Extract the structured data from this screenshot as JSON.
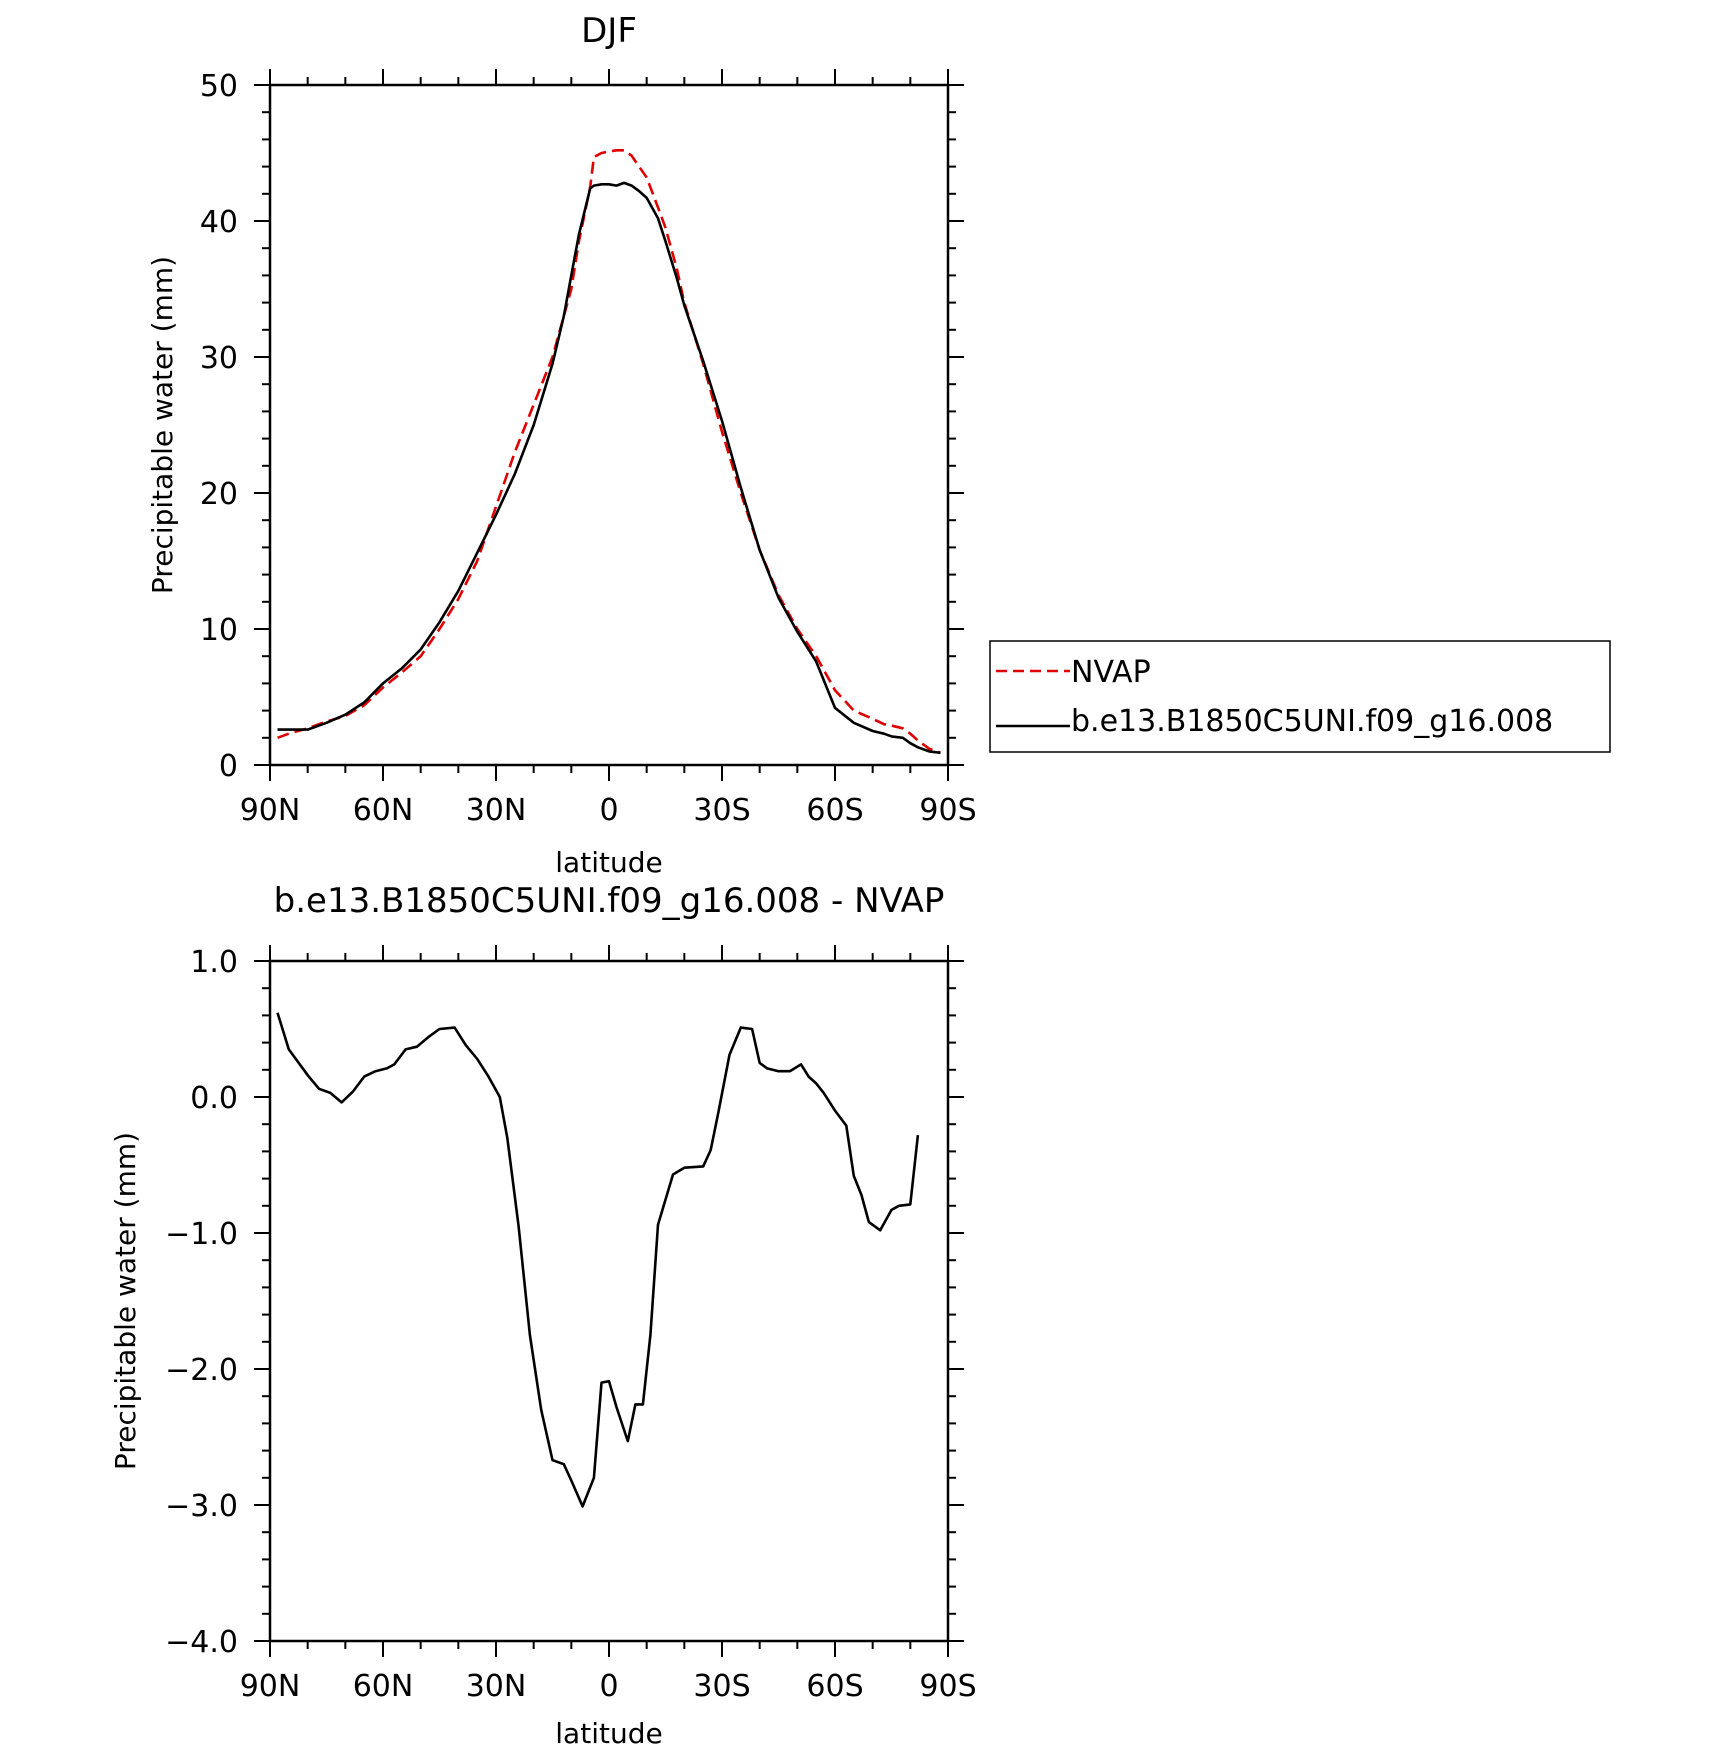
{
  "chart_data": [
    {
      "type": "line",
      "title": "DJF",
      "xlabel": "latitude",
      "ylabel": "Precipitable water (mm)",
      "ylim": [
        0,
        50
      ],
      "yticks": [
        "0",
        "10",
        "20",
        "30",
        "40",
        "50"
      ],
      "xticks": [
        "90N",
        "60N",
        "30N",
        "0",
        "30S",
        "60S",
        "90S"
      ],
      "xrange_note": "x axis runs from 90N (left) to 90S (right); values below are signed latitude, north positive",
      "legend": {
        "position": "right",
        "entries": [
          "NVAP",
          "b.e13.B1850C5UNI.f09_g16.008"
        ]
      },
      "series": [
        {
          "name": "NVAP",
          "color": "#e00000",
          "style": "dashed",
          "x": [
            88,
            85,
            80,
            75,
            70,
            65,
            60,
            55,
            50,
            45,
            40,
            35,
            30,
            25,
            20,
            15,
            10,
            8,
            5,
            4,
            2,
            0,
            -2,
            -4,
            -6,
            -8,
            -10,
            -13,
            -15,
            -18,
            -20,
            -25,
            -30,
            -35,
            -40,
            -45,
            -50,
            -55,
            -60,
            -65,
            -70,
            -73,
            -75,
            -78,
            -80,
            -82,
            -85,
            -88
          ],
          "values": [
            2.0,
            2.3,
            2.7,
            3.2,
            3.6,
            4.4,
            5.7,
            6.8,
            8.0,
            10.0,
            12.2,
            15.0,
            19.0,
            23.0,
            26.5,
            30.0,
            35.0,
            38.5,
            42.5,
            44.7,
            45.0,
            45.1,
            45.2,
            45.2,
            44.8,
            44.0,
            43.2,
            41.0,
            39.5,
            36.5,
            34.0,
            29.5,
            24.5,
            20.0,
            15.8,
            12.5,
            10.0,
            8.0,
            5.5,
            4.0,
            3.4,
            3.0,
            2.9,
            2.7,
            2.3,
            1.8,
            1.2,
            0.9
          ]
        },
        {
          "name": "b.e13.B1850C5UNI.f09_g16.008",
          "color": "#000000",
          "style": "solid",
          "x": [
            88,
            85,
            80,
            75,
            70,
            65,
            60,
            55,
            50,
            45,
            40,
            35,
            30,
            25,
            20,
            15,
            12,
            10,
            8,
            5,
            4,
            2,
            0,
            -2,
            -4,
            -6,
            -8,
            -10,
            -13,
            -15,
            -18,
            -20,
            -25,
            -30,
            -35,
            -40,
            -45,
            -50,
            -55,
            -60,
            -65,
            -70,
            -73,
            -75,
            -78,
            -80,
            -82,
            -85,
            -88
          ],
          "values": [
            2.6,
            2.6,
            2.6,
            3.1,
            3.7,
            4.6,
            6.0,
            7.1,
            8.5,
            10.5,
            12.8,
            15.6,
            18.4,
            21.4,
            25.0,
            29.5,
            33.0,
            36.0,
            39.0,
            42.4,
            42.6,
            42.7,
            42.7,
            42.6,
            42.8,
            42.6,
            42.2,
            41.7,
            40.2,
            38.5,
            35.8,
            33.8,
            29.7,
            25.3,
            20.4,
            15.8,
            12.3,
            9.8,
            7.6,
            4.2,
            3.1,
            2.5,
            2.3,
            2.1,
            2.0,
            1.6,
            1.3,
            1.0,
            0.9
          ]
        }
      ]
    },
    {
      "type": "line",
      "title": "b.e13.B1850C5UNI.f09_g16.008 - NVAP",
      "xlabel": "latitude",
      "ylabel": "Precipitable water (mm)",
      "ylim": [
        -4.0,
        1.0
      ],
      "yticks": [
        "-4.0",
        "-3.0",
        "-2.0",
        "-1.0",
        "0.0",
        "1.0"
      ],
      "xticks": [
        "90N",
        "60N",
        "30N",
        "0",
        "30S",
        "60S",
        "90S"
      ],
      "series": [
        {
          "color": "#000000",
          "style": "solid",
          "x": [
            88,
            85,
            80,
            77,
            74,
            71,
            68,
            65,
            62,
            59,
            57,
            54,
            51,
            48,
            45,
            41,
            38,
            35,
            32,
            29,
            27,
            24,
            21,
            18,
            15,
            12,
            10,
            7,
            4,
            2,
            0,
            -2,
            -5,
            -7,
            -9,
            -11,
            -13,
            -17,
            -20,
            -25,
            -27,
            -29,
            -32,
            -35,
            -38,
            -40,
            -42,
            -45,
            -48,
            -51,
            -53,
            -55,
            -57,
            -60,
            -63,
            -65,
            -67,
            -69,
            -72,
            -75,
            -77,
            -80,
            -82,
            -85,
            -87
          ],
          "values": [
            0.62,
            0.35,
            0.16,
            0.06,
            0.03,
            -0.04,
            0.04,
            0.15,
            0.19,
            0.21,
            0.24,
            0.35,
            0.37,
            0.44,
            0.5,
            0.51,
            0.38,
            0.28,
            0.15,
            0.0,
            -0.3,
            -0.95,
            -1.75,
            -2.3,
            -2.67,
            -2.7,
            -2.82,
            -3.01,
            -2.8,
            -2.1,
            -2.09,
            -2.28,
            -2.53,
            -2.26,
            -2.26,
            -1.75,
            -0.94,
            -0.57,
            -0.52,
            -0.51,
            -0.39,
            -0.12,
            0.31,
            0.51,
            0.5,
            0.25,
            0.21,
            0.19,
            0.19,
            0.24,
            0.15,
            0.1,
            0.03,
            -0.1,
            -0.21,
            -0.58,
            -0.72,
            -0.92,
            -0.98,
            -0.83,
            -0.8,
            -0.79,
            -0.28,
            null,
            null
          ]
        }
      ]
    }
  ]
}
